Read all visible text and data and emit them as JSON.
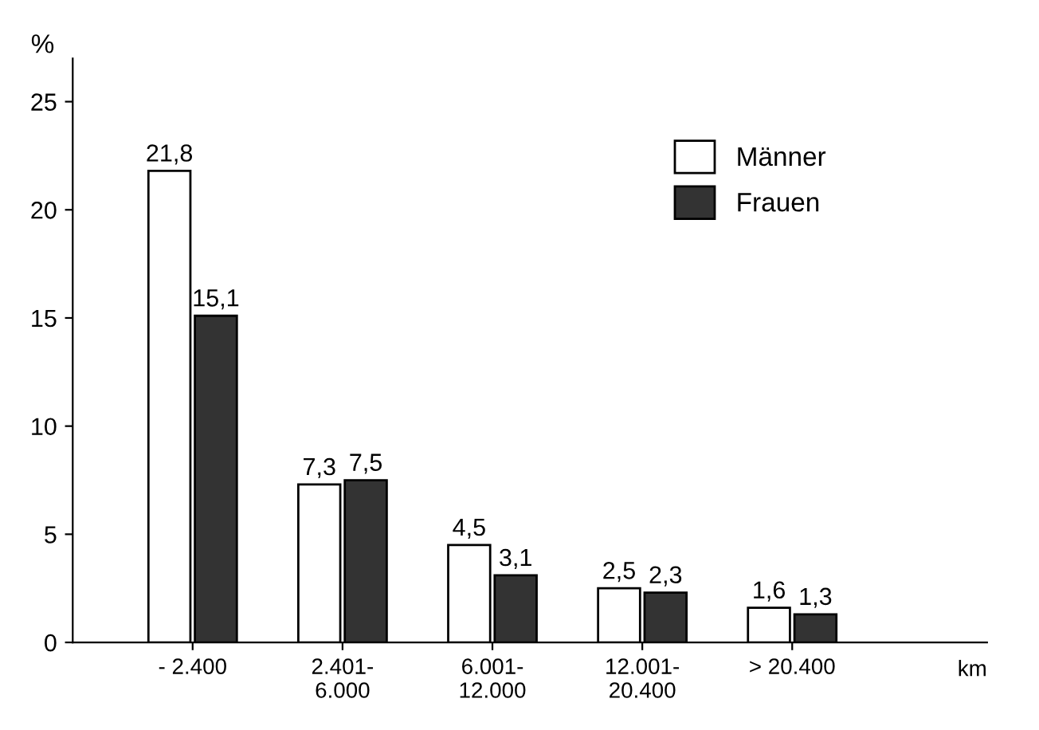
{
  "chart_data": {
    "type": "bar",
    "ylabel": "%",
    "xlabel": "km",
    "categories": [
      "- 2.400",
      "2.401-\n6.000",
      "6.001-\n12.000",
      "12.001-\n20.400",
      "> 20.400"
    ],
    "series": [
      {
        "name": "Männer",
        "color": "#ffffff",
        "values": [
          21.8,
          7.3,
          4.5,
          2.5,
          1.6
        ],
        "value_labels": [
          "21,8",
          "7,3",
          "4,5",
          "2,5",
          "1,6"
        ]
      },
      {
        "name": "Frauen",
        "color": "#333333",
        "values": [
          15.1,
          7.5,
          3.1,
          2.3,
          1.3
        ],
        "value_labels": [
          "15,1",
          "7,5",
          "3,1",
          "2,3",
          "1,3"
        ]
      }
    ],
    "ylim": [
      0,
      27
    ],
    "yticks": [
      0,
      5,
      10,
      15,
      20,
      25
    ],
    "grid": false,
    "legend": "top right"
  }
}
